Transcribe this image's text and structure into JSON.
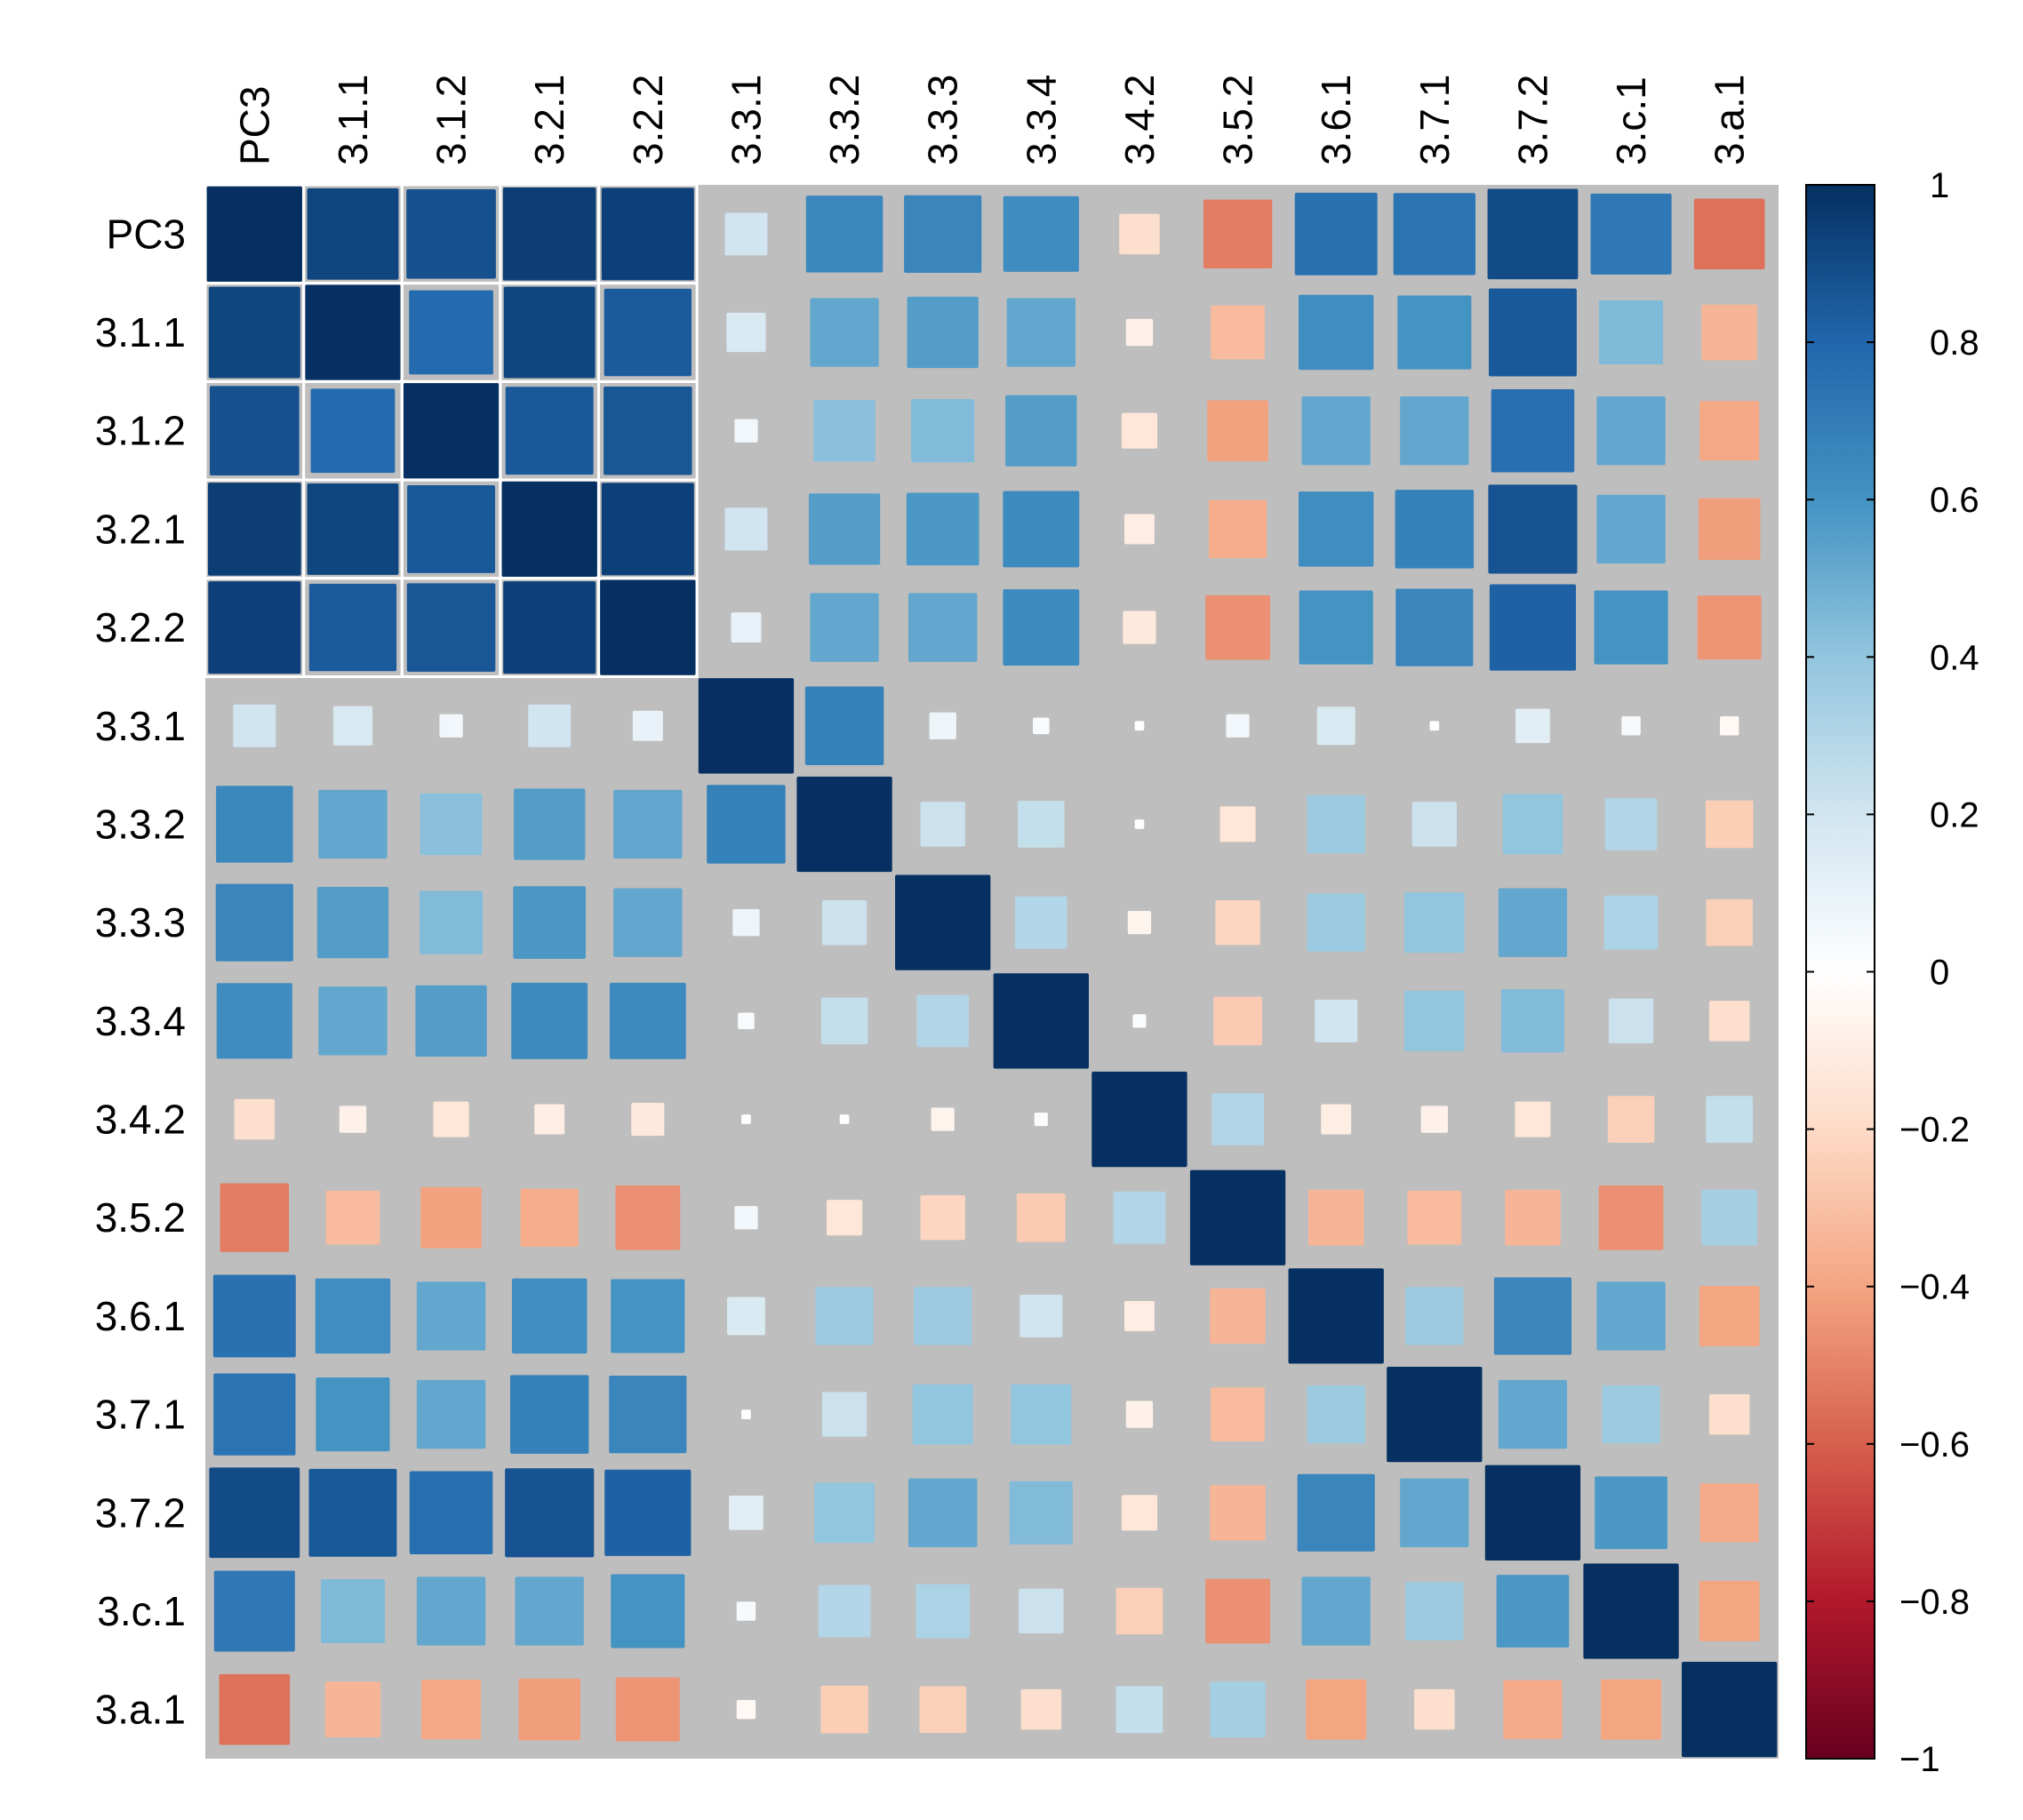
{
  "chart_data": {
    "type": "heatmap",
    "subtype": "correlation-matrix",
    "variables": [
      "PC3",
      "3.1.1",
      "3.1.2",
      "3.2.1",
      "3.2.2",
      "3.3.1",
      "3.3.2",
      "3.3.3",
      "3.3.4",
      "3.4.2",
      "3.5.2",
      "3.6.1",
      "3.7.1",
      "3.7.2",
      "3.c.1",
      "3.a.1"
    ],
    "matrix": [
      [
        1.0,
        0.92,
        0.88,
        0.95,
        0.94,
        0.2,
        0.65,
        0.66,
        0.63,
        -0.18,
        -0.52,
        0.75,
        0.74,
        0.9,
        0.72,
        -0.55
      ],
      [
        0.92,
        1.0,
        0.78,
        0.92,
        0.84,
        0.17,
        0.52,
        0.56,
        0.52,
        -0.08,
        -0.32,
        0.62,
        0.6,
        0.85,
        0.45,
        -0.34
      ],
      [
        0.88,
        0.78,
        1.0,
        0.85,
        0.86,
        0.06,
        0.42,
        0.44,
        0.56,
        -0.14,
        -0.41,
        0.52,
        0.52,
        0.76,
        0.52,
        -0.39
      ],
      [
        0.95,
        0.92,
        0.85,
        1.0,
        0.94,
        0.2,
        0.56,
        0.58,
        0.64,
        -0.1,
        -0.37,
        0.62,
        0.68,
        0.87,
        0.52,
        -0.42
      ],
      [
        0.94,
        0.84,
        0.86,
        0.94,
        1.0,
        0.1,
        0.52,
        0.52,
        0.64,
        -0.12,
        -0.46,
        0.6,
        0.66,
        0.82,
        0.6,
        -0.45
      ],
      [
        0.2,
        0.17,
        0.06,
        0.2,
        0.1,
        1.0,
        0.68,
        0.08,
        0.03,
        0.01,
        0.06,
        0.16,
        0.01,
        0.13,
        0.04,
        -0.04
      ],
      [
        0.65,
        0.52,
        0.42,
        0.56,
        0.52,
        0.68,
        1.0,
        0.22,
        0.24,
        0.01,
        -0.14,
        0.37,
        0.22,
        0.4,
        0.3,
        -0.25
      ],
      [
        0.66,
        0.56,
        0.44,
        0.58,
        0.52,
        0.08,
        0.22,
        1.0,
        0.3,
        -0.06,
        -0.22,
        0.37,
        0.4,
        0.52,
        0.32,
        -0.24
      ],
      [
        0.63,
        0.52,
        0.56,
        0.64,
        0.64,
        0.03,
        0.24,
        0.3,
        1.0,
        0.02,
        -0.26,
        0.2,
        0.4,
        0.44,
        0.22,
        -0.18
      ],
      [
        -0.18,
        -0.08,
        -0.14,
        -0.1,
        -0.12,
        0.01,
        0.01,
        -0.06,
        0.02,
        1.0,
        0.3,
        -0.1,
        -0.08,
        -0.14,
        -0.24,
        0.24
      ],
      [
        -0.52,
        -0.32,
        -0.41,
        -0.37,
        -0.46,
        0.06,
        -0.14,
        -0.22,
        -0.26,
        0.3,
        1.0,
        -0.34,
        -0.32,
        -0.34,
        -0.46,
        0.34
      ],
      [
        0.75,
        0.62,
        0.52,
        0.62,
        0.6,
        0.16,
        0.37,
        0.37,
        0.2,
        -0.1,
        -0.34,
        1.0,
        0.37,
        0.66,
        0.52,
        -0.4
      ],
      [
        0.74,
        0.6,
        0.52,
        0.68,
        0.66,
        0.01,
        0.22,
        0.4,
        0.4,
        -0.08,
        -0.32,
        0.37,
        1.0,
        0.52,
        0.37,
        -0.18
      ],
      [
        0.9,
        0.85,
        0.76,
        0.87,
        0.82,
        0.13,
        0.4,
        0.52,
        0.44,
        -0.14,
        -0.34,
        0.66,
        0.52,
        1.0,
        0.58,
        -0.38
      ],
      [
        0.72,
        0.45,
        0.52,
        0.52,
        0.6,
        0.04,
        0.3,
        0.32,
        0.22,
        -0.24,
        -0.46,
        0.52,
        0.37,
        0.58,
        1.0,
        -0.4
      ],
      [
        -0.55,
        -0.34,
        -0.39,
        -0.42,
        -0.45,
        -0.04,
        -0.25,
        -0.24,
        -0.18,
        0.24,
        0.34,
        -0.4,
        -0.18,
        -0.38,
        -0.4,
        1.0
      ]
    ],
    "method": "square",
    "order": "hclust",
    "clusters": [
      [
        0,
        4
      ]
    ],
    "cluster_border_color": "#FFFFFF",
    "background_color": "#BEBEBE",
    "colorbar": {
      "ticks": [
        "1",
        "0.8",
        "0.6",
        "0.4",
        "0.2",
        "0",
        "−0.2",
        "−0.4",
        "−0.6",
        "−0.8",
        "−1"
      ],
      "tick_values": [
        1,
        0.8,
        0.6,
        0.4,
        0.2,
        0,
        -0.2,
        -0.4,
        -0.6,
        -0.8,
        -1
      ],
      "range": [
        -1,
        1
      ],
      "palette": [
        "#67001F",
        "#B2182B",
        "#D6604D",
        "#F4A582",
        "#FDDBC7",
        "#FFFFFF",
        "#D1E5F0",
        "#92C5DE",
        "#4393C3",
        "#2166AC",
        "#053061"
      ]
    }
  }
}
